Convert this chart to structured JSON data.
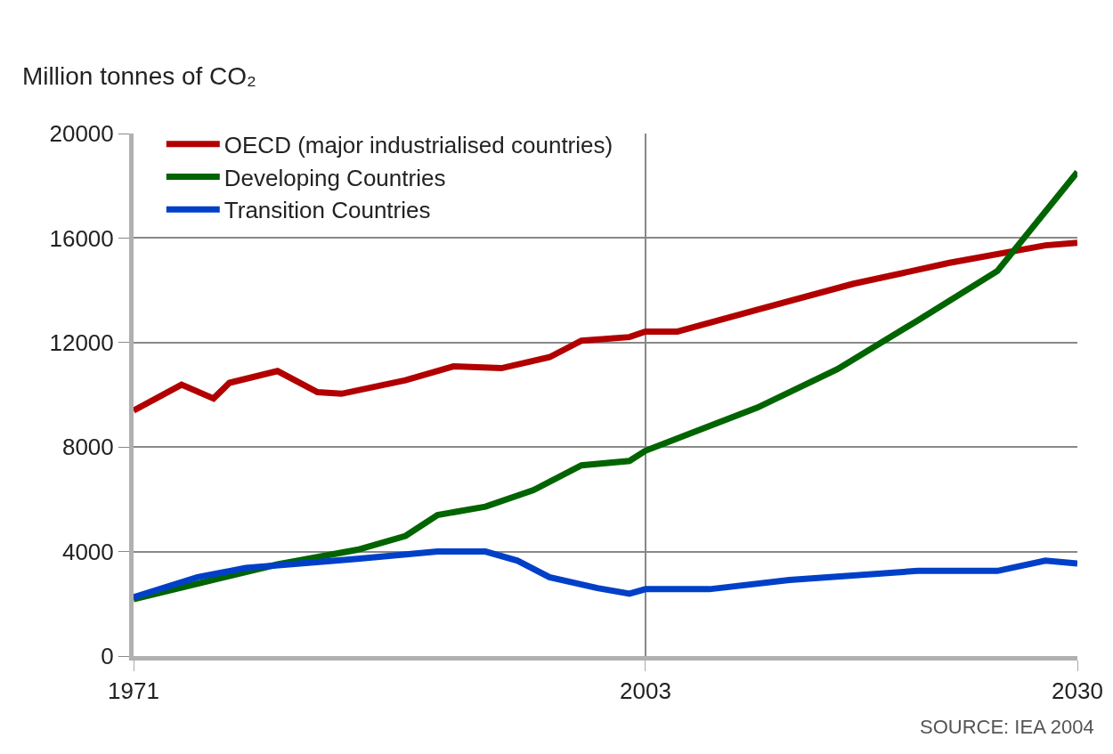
{
  "chart_data": {
    "type": "line",
    "ylabel": "Million tonnes of CO₂",
    "xlim": [
      1971,
      2030
    ],
    "xticks": [
      1971,
      2003,
      2030
    ],
    "ylim": [
      0,
      20000
    ],
    "yticks": [
      0,
      4000,
      8000,
      12000,
      16000,
      20000
    ],
    "grid": true,
    "legend": "top left",
    "line_style": "solid",
    "series": [
      {
        "name": "OECD (major industrialised countries)",
        "color": "#b20000",
        "x": [
          1971,
          1974,
          1976,
          1977,
          1980,
          1982.5,
          1984,
          1988,
          1991,
          1994,
          1997,
          1999,
          2002,
          2003,
          2005,
          2010,
          2016,
          2022,
          2028,
          2030
        ],
        "values": [
          9400,
          10390,
          9860,
          10460,
          10910,
          10100,
          10040,
          10560,
          11090,
          11020,
          11440,
          12070,
          12210,
          12420,
          12420,
          13260,
          14250,
          15050,
          15720,
          15820
        ]
      },
      {
        "name": "Developing Countries",
        "color": "#006400",
        "x": [
          1971,
          1980,
          1985,
          1988,
          1990,
          1993,
          1996,
          1999,
          2002,
          2003,
          2010,
          2015,
          2020,
          2025,
          2030
        ],
        "values": [
          2180,
          3510,
          4070,
          4600,
          5400,
          5720,
          6350,
          7300,
          7470,
          7860,
          9510,
          10980,
          12840,
          14740,
          18530
        ]
      },
      {
        "name": "Transition Countries",
        "color": "#0040c8",
        "x": [
          1971,
          1975,
          1978,
          1985,
          1990,
          1993,
          1995,
          1997,
          2000,
          2002,
          2003,
          2007,
          2012,
          2020,
          2025,
          2028,
          2030
        ],
        "values": [
          2250,
          3020,
          3370,
          3720,
          4000,
          4000,
          3650,
          3020,
          2600,
          2390,
          2560,
          2560,
          2910,
          3260,
          3260,
          3650,
          3540
        ]
      }
    ],
    "annotations": [
      "SOURCE: IEA 2004"
    ]
  }
}
